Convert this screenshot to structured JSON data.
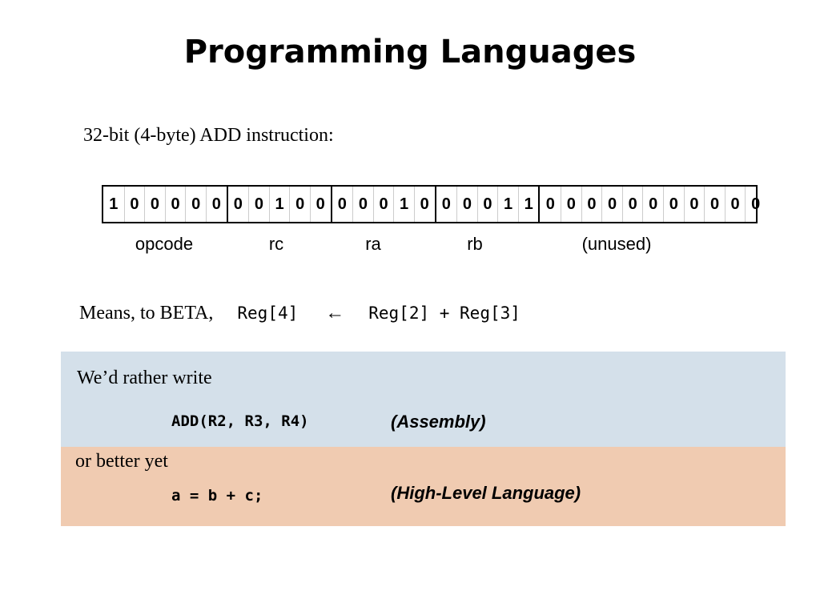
{
  "title": "Programming Languages",
  "subtitle": "32-bit (4-byte) ADD instruction:",
  "fields": [
    {
      "label": "opcode",
      "bits": [
        "1",
        "0",
        "0",
        "0",
        "0",
        "0"
      ]
    },
    {
      "label": "rc",
      "bits": [
        "0",
        "0",
        "1",
        "0",
        "0"
      ]
    },
    {
      "label": "ra",
      "bits": [
        "0",
        "0",
        "0",
        "1",
        "0"
      ]
    },
    {
      "label": "rb",
      "bits": [
        "0",
        "0",
        "0",
        "1",
        "1"
      ]
    },
    {
      "label": "(unused)",
      "bits": [
        "0",
        "0",
        "0",
        "0",
        "0",
        "0",
        "0",
        "0",
        "0",
        "0",
        "0"
      ]
    }
  ],
  "means": {
    "prefix": "Means, to BETA,",
    "dest": "Reg[4]",
    "arrow": "←",
    "expr": "Reg[2] + Reg[3]"
  },
  "assembly": {
    "intro": "We’d rather write",
    "code": "ADD(R2, R3, R4)",
    "label": "(Assembly)",
    "bg": "#d4e0ea"
  },
  "highlevel": {
    "intro": "or better yet",
    "code": "a = b + c;",
    "label": "(High-Level Language)",
    "bg": "#f0cbb1"
  }
}
